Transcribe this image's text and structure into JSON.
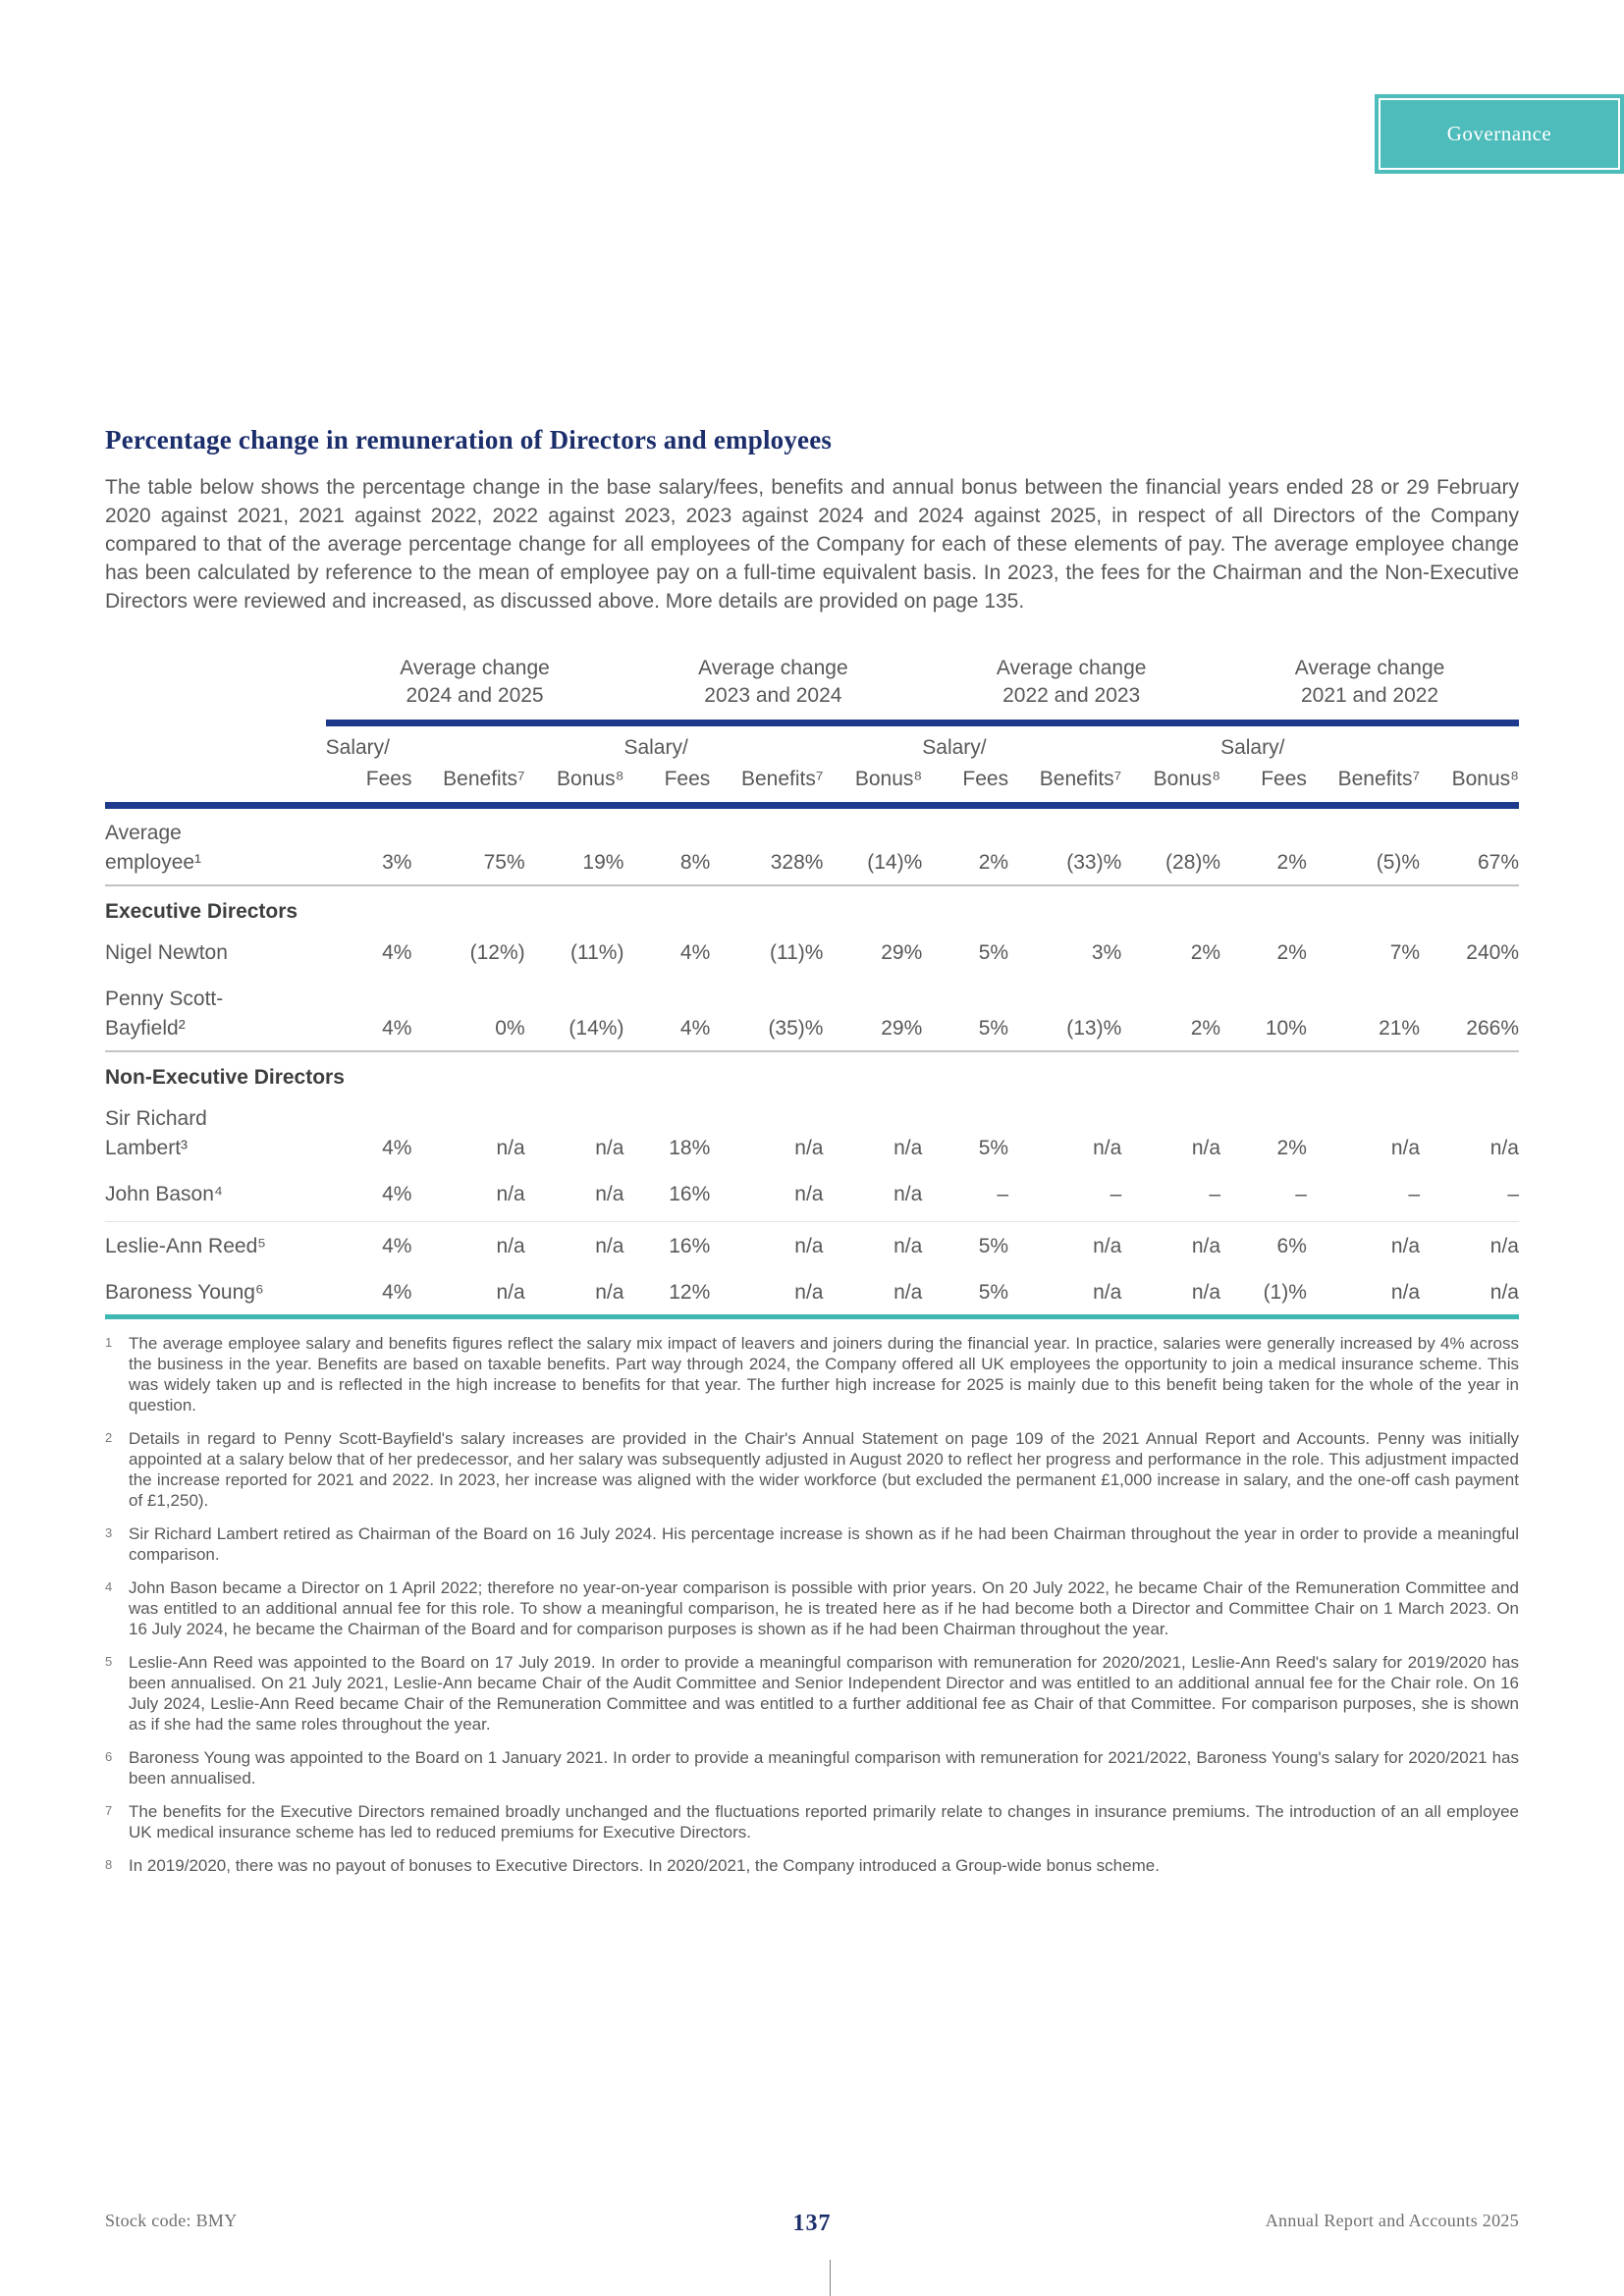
{
  "page": {
    "section_label": "Governance",
    "title": "Percentage change in remuneration of Directors and employees",
    "intro": "The table below shows the percentage change in the base salary/fees, benefits and annual bonus between the financial years ended 28 or 29 February 2020 against 2021, 2021 against 2022, 2022 against 2023, 2023 against 2024 and 2024 against 2025, in respect of all Directors of the Company compared to that of the average percentage change for all employees of the Company for each of these elements of pay. The average employee change has been calculated by reference to the mean of employee pay on a full-time equivalent basis. In 2023, the fees for the Chairman and the Non-Executive Directors were reviewed and increased, as discussed above. More details are provided on page 135.",
    "footer": {
      "left": "Stock code: BMY",
      "page_number": "137",
      "right": "Annual Report and Accounts 2025"
    },
    "colors": {
      "accent_navy": "#1e3a8c",
      "accent_teal": "#3eb7b3",
      "tab_teal": "#4dbcbb",
      "title_navy": "#1b2e6b"
    }
  },
  "table": {
    "group_headers": [
      {
        "line1": "Average change",
        "line2": "2024 and 2025"
      },
      {
        "line1": "Average change",
        "line2": "2023 and 2024"
      },
      {
        "line1": "Average change",
        "line2": "2022 and 2023"
      },
      {
        "line1": "Average change",
        "line2": "2021 and 2022"
      }
    ],
    "sub_headers": {
      "salary": "Salary/",
      "fees": "Fees",
      "benefits": "Benefits⁷",
      "bonus": "Bonus⁸"
    },
    "rows": [
      {
        "type": "data",
        "label_lines": [
          "Average",
          "employee¹"
        ],
        "values": [
          "3%",
          "75%",
          "19%",
          "8%",
          "328%",
          "(14)%",
          "2%",
          "(33)%",
          "(28)%",
          "2%",
          "(5)%",
          "67%"
        ],
        "divider_below": true
      },
      {
        "type": "section",
        "label": "Executive Directors"
      },
      {
        "type": "data",
        "label_lines": [
          "Nigel Newton"
        ],
        "values": [
          "4%",
          "(12%)",
          "(11%)",
          "4%",
          "(11)%",
          "29%",
          "5%",
          "3%",
          "2%",
          "2%",
          "7%",
          "240%"
        ]
      },
      {
        "type": "data",
        "label_lines": [
          "Penny Scott-",
          "Bayfield²"
        ],
        "values": [
          "4%",
          "0%",
          "(14%)",
          "4%",
          "(35)%",
          "29%",
          "5%",
          "(13)%",
          "2%",
          "10%",
          "21%",
          "266%"
        ],
        "divider_below": true
      },
      {
        "type": "section",
        "label": "Non-Executive Directors"
      },
      {
        "type": "data",
        "label_lines": [
          "Sir Richard",
          "Lambert³"
        ],
        "values": [
          "4%",
          "n/a",
          "n/a",
          "18%",
          "n/a",
          "n/a",
          "5%",
          "n/a",
          "n/a",
          "2%",
          "n/a",
          "n/a"
        ]
      },
      {
        "type": "data",
        "label_lines": [
          "John Bason⁴"
        ],
        "values": [
          "4%",
          "n/a",
          "n/a",
          "16%",
          "n/a",
          "n/a",
          "–",
          "–",
          "–",
          "–",
          "–",
          "–"
        ],
        "light_divider_below": true
      },
      {
        "type": "data",
        "label_lines": [
          "Leslie-Ann Reed⁵"
        ],
        "values": [
          "4%",
          "n/a",
          "n/a",
          "16%",
          "n/a",
          "n/a",
          "5%",
          "n/a",
          "n/a",
          "6%",
          "n/a",
          "n/a"
        ]
      },
      {
        "type": "data",
        "label_lines": [
          "Baroness Young⁶"
        ],
        "values": [
          "4%",
          "n/a",
          "n/a",
          "12%",
          "n/a",
          "n/a",
          "5%",
          "n/a",
          "n/a",
          "(1)%",
          "n/a",
          "n/a"
        ]
      }
    ]
  },
  "footnotes": [
    {
      "marker": "1",
      "text": "The average employee salary and benefits figures reflect the salary mix impact of leavers and joiners during the financial year. In practice, salaries were generally increased by 4% across the business in the year. Benefits are based on taxable benefits. Part way through 2024, the Company offered all UK employees the opportunity to join a medical insurance scheme. This was widely taken up and is reflected in the high increase to benefits for that year. The further high increase for 2025 is mainly due to this benefit being taken for the whole of the year in question."
    },
    {
      "marker": "2",
      "text": "Details in regard to Penny Scott-Bayfield's salary increases are provided in the Chair's Annual Statement on page 109 of the 2021 Annual Report and Accounts. Penny was initially appointed at a salary below that of her predecessor, and her salary was subsequently adjusted in August 2020 to reflect her progress and performance in the role. This adjustment impacted the increase reported for 2021 and 2022. In 2023, her increase was aligned with the wider workforce (but excluded the permanent £1,000 increase in salary, and the one-off cash payment of £1,250)."
    },
    {
      "marker": "3",
      "text": "Sir Richard Lambert retired as Chairman of the Board on 16 July 2024. His percentage increase is shown as if he had been Chairman throughout the year in order to provide a meaningful comparison."
    },
    {
      "marker": "4",
      "text": "John Bason became a Director on 1 April 2022; therefore no year-on-year comparison is possible with prior years. On 20 July 2022, he became Chair of the Remuneration Committee and was entitled to an additional annual fee for this role. To show a meaningful comparison, he is treated here as if he had become both a Director and Committee Chair on 1 March 2023. On 16 July 2024, he became the Chairman of the Board and for comparison purposes is shown as if he had been Chairman throughout the year."
    },
    {
      "marker": "5",
      "text": "Leslie-Ann Reed was appointed to the Board on 17 July 2019. In order to provide a meaningful comparison with remuneration for 2020/2021, Leslie-Ann Reed's salary for 2019/2020 has been annualised. On 21 July 2021, Leslie-Ann became Chair of the Audit Committee and Senior Independent Director and was entitled to an additional annual fee for the Chair role. On 16 July 2024, Leslie-Ann Reed became Chair of the Remuneration Committee and was entitled to a further additional fee as Chair of that Committee. For comparison purposes, she is shown as if she had the same roles throughout the year."
    },
    {
      "marker": "6",
      "text": "Baroness Young was appointed to the Board on 1 January 2021. In order to provide a meaningful comparison with remuneration for 2021/2022, Baroness Young's salary for 2020/2021 has been annualised."
    },
    {
      "marker": "7",
      "text": "The benefits for the Executive Directors remained broadly unchanged and the fluctuations reported primarily relate to changes in insurance premiums. The introduction of an all employee UK medical insurance scheme has led to reduced premiums for Executive Directors."
    },
    {
      "marker": "8",
      "text": "In 2019/2020, there was no payout of bonuses to Executive Directors. In 2020/2021, the Company introduced a Group-wide bonus scheme."
    }
  ]
}
